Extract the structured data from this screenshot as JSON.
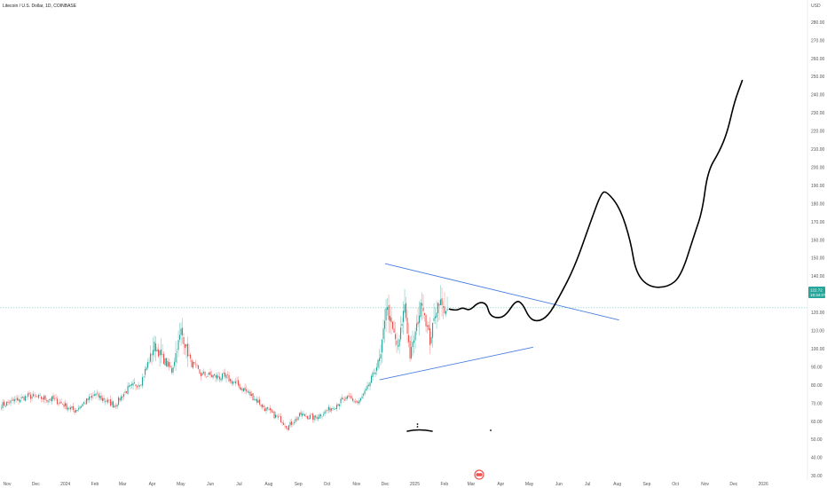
{
  "header": {
    "title": "Litecoin / U.S. Dollar, 1D, COINBASE",
    "currency": "USD"
  },
  "current_price": {
    "value": "122.72",
    "countdown": "18:34:07"
  },
  "colors": {
    "up": "#26a69a",
    "down": "#ef5350",
    "trendline": "#4a7fe0",
    "drawing": "#000000",
    "price_line": "#26a69a",
    "price_label_bg": "#26a69a",
    "axis_text": "#555555"
  },
  "chart_data": {
    "type": "candlestick",
    "title": "Litecoin / U.S. Dollar, 1D, COINBASE",
    "ylabel": "USD",
    "ylim": [
      28,
      285
    ],
    "xlabels": [
      "Nov",
      "Dec",
      "2024",
      "Feb",
      "Mar",
      "Apr",
      "May",
      "Jun",
      "Jul",
      "Aug",
      "Sep",
      "Oct",
      "Nov",
      "Dec",
      "2025",
      "Feb",
      "Mar",
      "Apr",
      "May",
      "Jun",
      "Jul",
      "Aug",
      "Sep",
      "Oct",
      "Nov",
      "Dec",
      "2026"
    ],
    "ytick_labels": [
      "280.00",
      "270.00",
      "260.00",
      "250.00",
      "240.00",
      "230.00",
      "220.00",
      "210.00",
      "200.00",
      "190.00",
      "180.00",
      "170.00",
      "160.00",
      "150.00",
      "140.00",
      "130.00",
      "120.00",
      "110.00",
      "100.00",
      "90.00",
      "80.00",
      "70.00",
      "60.00",
      "50.00",
      "40.00",
      "30.00"
    ],
    "yticks": [
      280,
      270,
      260,
      250,
      240,
      230,
      220,
      210,
      200,
      190,
      180,
      170,
      160,
      150,
      140,
      130,
      120,
      110,
      100,
      90,
      80,
      70,
      60,
      50,
      40,
      30
    ],
    "anchor_prices": [
      [
        0,
        69
      ],
      [
        20,
        74
      ],
      [
        40,
        72
      ],
      [
        55,
        66
      ],
      [
        70,
        75
      ],
      [
        85,
        69
      ],
      [
        95,
        78
      ],
      [
        105,
        82
      ],
      [
        115,
        102
      ],
      [
        120,
        96
      ],
      [
        128,
        88
      ],
      [
        135,
        110
      ],
      [
        142,
        93
      ],
      [
        150,
        86
      ],
      [
        160,
        85
      ],
      [
        170,
        84
      ],
      [
        180,
        79
      ],
      [
        190,
        73
      ],
      [
        200,
        66
      ],
      [
        210,
        61
      ],
      [
        215,
        57
      ],
      [
        225,
        64
      ],
      [
        235,
        62
      ],
      [
        245,
        66
      ],
      [
        255,
        71
      ],
      [
        262,
        73
      ],
      [
        268,
        70
      ],
      [
        275,
        78
      ],
      [
        285,
        96
      ],
      [
        289,
        124
      ],
      [
        293,
        113
      ],
      [
        298,
        100
      ],
      [
        303,
        125
      ],
      [
        307,
        96
      ],
      [
        312,
        112
      ],
      [
        316,
        127
      ],
      [
        322,
        104
      ],
      [
        326,
        120
      ],
      [
        329,
        127
      ],
      [
        332,
        122
      ],
      [
        335,
        122
      ]
    ],
    "trendlines": [
      {
        "from": [
          "2024-12-01",
          147
        ],
        "to": [
          "2025-08-03",
          116
        ]
      },
      {
        "from": [
          "2024-11-25",
          83
        ],
        "to": [
          "2025-05-05",
          101
        ]
      },
      {
        "horizontal": 122.72
      }
    ],
    "projection_path_prices": [
      [
        130,
        122
      ],
      [
        135,
        121
      ],
      [
        140,
        123
      ],
      [
        145,
        121
      ],
      [
        152,
        126
      ],
      [
        158,
        125
      ],
      [
        160,
        119
      ],
      [
        165,
        117
      ],
      [
        172,
        118
      ],
      [
        180,
        127
      ],
      [
        185,
        125
      ],
      [
        190,
        117
      ],
      [
        196,
        115
      ],
      [
        204,
        118
      ],
      [
        212,
        128
      ],
      [
        224,
        145
      ],
      [
        236,
        170
      ],
      [
        244,
        186
      ],
      [
        248,
        187
      ],
      [
        258,
        178
      ],
      [
        266,
        160
      ],
      [
        270,
        142
      ],
      [
        280,
        134
      ],
      [
        294,
        134
      ],
      [
        304,
        140
      ],
      [
        314,
        163
      ],
      [
        320,
        176
      ],
      [
        324,
        198
      ],
      [
        333,
        209
      ],
      [
        339,
        220
      ],
      [
        344,
        236
      ],
      [
        350,
        248
      ]
    ]
  }
}
